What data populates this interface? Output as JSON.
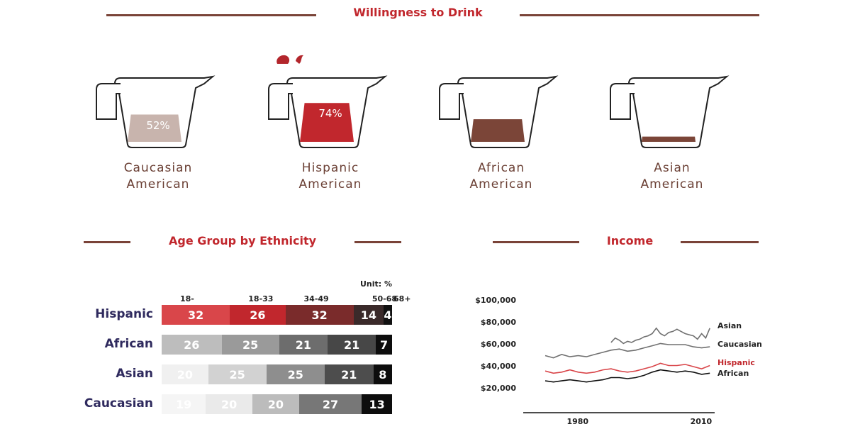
{
  "titles": {
    "willingness": "Willingness to Drink",
    "age": "Age Group by Ethnicity",
    "income": "Income"
  },
  "willingness": [
    {
      "line1": "Caucasian",
      "line2": "American",
      "percent_label": "52%",
      "fill": 0.52,
      "color": "#c8b4ad"
    },
    {
      "line1": "Hispanic",
      "line2": "American",
      "percent_label": "74%",
      "fill": 0.74,
      "color": "#c1272d"
    },
    {
      "line1": "African",
      "line2": "American",
      "percent_label": "",
      "fill": 0.43,
      "color": "#7b4538"
    },
    {
      "line1": "Asian",
      "line2": "American",
      "percent_label": "",
      "fill": 0.1,
      "color": "#7b4538"
    }
  ],
  "age_chart": {
    "unit": "Unit: %",
    "groups": [
      "18-",
      "18-33",
      "34-49",
      "50-68",
      "68+"
    ],
    "rows": [
      {
        "name": "Hispanic",
        "values": [
          32,
          26,
          32,
          14,
          4
        ],
        "colors": [
          "#d9464a",
          "#c1272d",
          "#7a2b2b",
          "#3a2a2a",
          "#111111"
        ]
      },
      {
        "name": "African",
        "values": [
          26,
          25,
          21,
          21,
          7
        ],
        "colors": [
          "#bdbdbd",
          "#9a9a9a",
          "#6d6d6d",
          "#474747",
          "#0d0d0d"
        ]
      },
      {
        "name": "Asian",
        "values": [
          20,
          25,
          25,
          21,
          8
        ],
        "colors": [
          "#f0f0f0",
          "#d2d2d2",
          "#8e8e8e",
          "#4d4d4d",
          "#0d0d0d"
        ]
      },
      {
        "name": "Caucasian",
        "values": [
          19,
          20,
          20,
          27,
          13
        ],
        "colors": [
          "#f5f5f5",
          "#eaeaea",
          "#bcbcbc",
          "#777777",
          "#0d0d0d"
        ]
      }
    ]
  },
  "chart_data": {
    "type": "line",
    "title": "Income",
    "xlabel": "",
    "ylabel": "",
    "x_ticks": [
      "1980",
      "2010"
    ],
    "y_ticks": [
      "$100,000",
      "$80,000",
      "$60,000",
      "$40,000",
      "$20,000"
    ],
    "ylim": [
      0,
      100000
    ],
    "xlim": [
      1967,
      2013
    ],
    "series": [
      {
        "name": "Asian",
        "color": "#707070",
        "x": [
          1988,
          1989,
          1990,
          1991,
          1992,
          1993,
          1994,
          1995,
          1996,
          1997,
          1998,
          1999,
          2000,
          2001,
          2002,
          2003,
          2004,
          2005,
          2006,
          2007,
          2008,
          2009,
          2010,
          2011,
          2012
        ],
        "y": [
          62000,
          66000,
          64000,
          61000,
          63000,
          62000,
          64000,
          65000,
          67000,
          68000,
          70000,
          75000,
          70000,
          68000,
          71000,
          72000,
          74000,
          72000,
          70000,
          69000,
          68000,
          65000,
          70000,
          66000,
          75000
        ]
      },
      {
        "name": "Caucasian",
        "color": "#707070",
        "x": [
          1972,
          1974,
          1976,
          1978,
          1980,
          1982,
          1984,
          1986,
          1988,
          1990,
          1992,
          1994,
          1996,
          1998,
          2000,
          2002,
          2004,
          2006,
          2008,
          2010,
          2012
        ],
        "y": [
          50000,
          48000,
          51000,
          49000,
          50000,
          49000,
          51000,
          53000,
          55000,
          56000,
          54000,
          55000,
          57000,
          59000,
          61000,
          60000,
          60000,
          60000,
          58000,
          57000,
          58000
        ]
      },
      {
        "name": "Hispanic",
        "color": "#d9464a",
        "x": [
          1972,
          1974,
          1976,
          1978,
          1980,
          1982,
          1984,
          1986,
          1988,
          1990,
          1992,
          1994,
          1996,
          1998,
          2000,
          2002,
          2004,
          2006,
          2008,
          2010,
          2012
        ],
        "y": [
          36000,
          34000,
          35000,
          37000,
          35000,
          34000,
          35000,
          37000,
          38000,
          36000,
          35000,
          36000,
          38000,
          40000,
          43000,
          41000,
          41000,
          42000,
          40000,
          38000,
          41000
        ]
      },
      {
        "name": "African",
        "color": "#111111",
        "x": [
          1972,
          1974,
          1976,
          1978,
          1980,
          1982,
          1984,
          1986,
          1988,
          1990,
          1992,
          1994,
          1996,
          1998,
          2000,
          2002,
          2004,
          2006,
          2008,
          2010,
          2012
        ],
        "y": [
          27000,
          26000,
          27000,
          28000,
          27000,
          26000,
          27000,
          28000,
          30000,
          30000,
          29000,
          30000,
          32000,
          35000,
          37000,
          36000,
          35000,
          36000,
          35000,
          33000,
          34000
        ]
      }
    ]
  }
}
